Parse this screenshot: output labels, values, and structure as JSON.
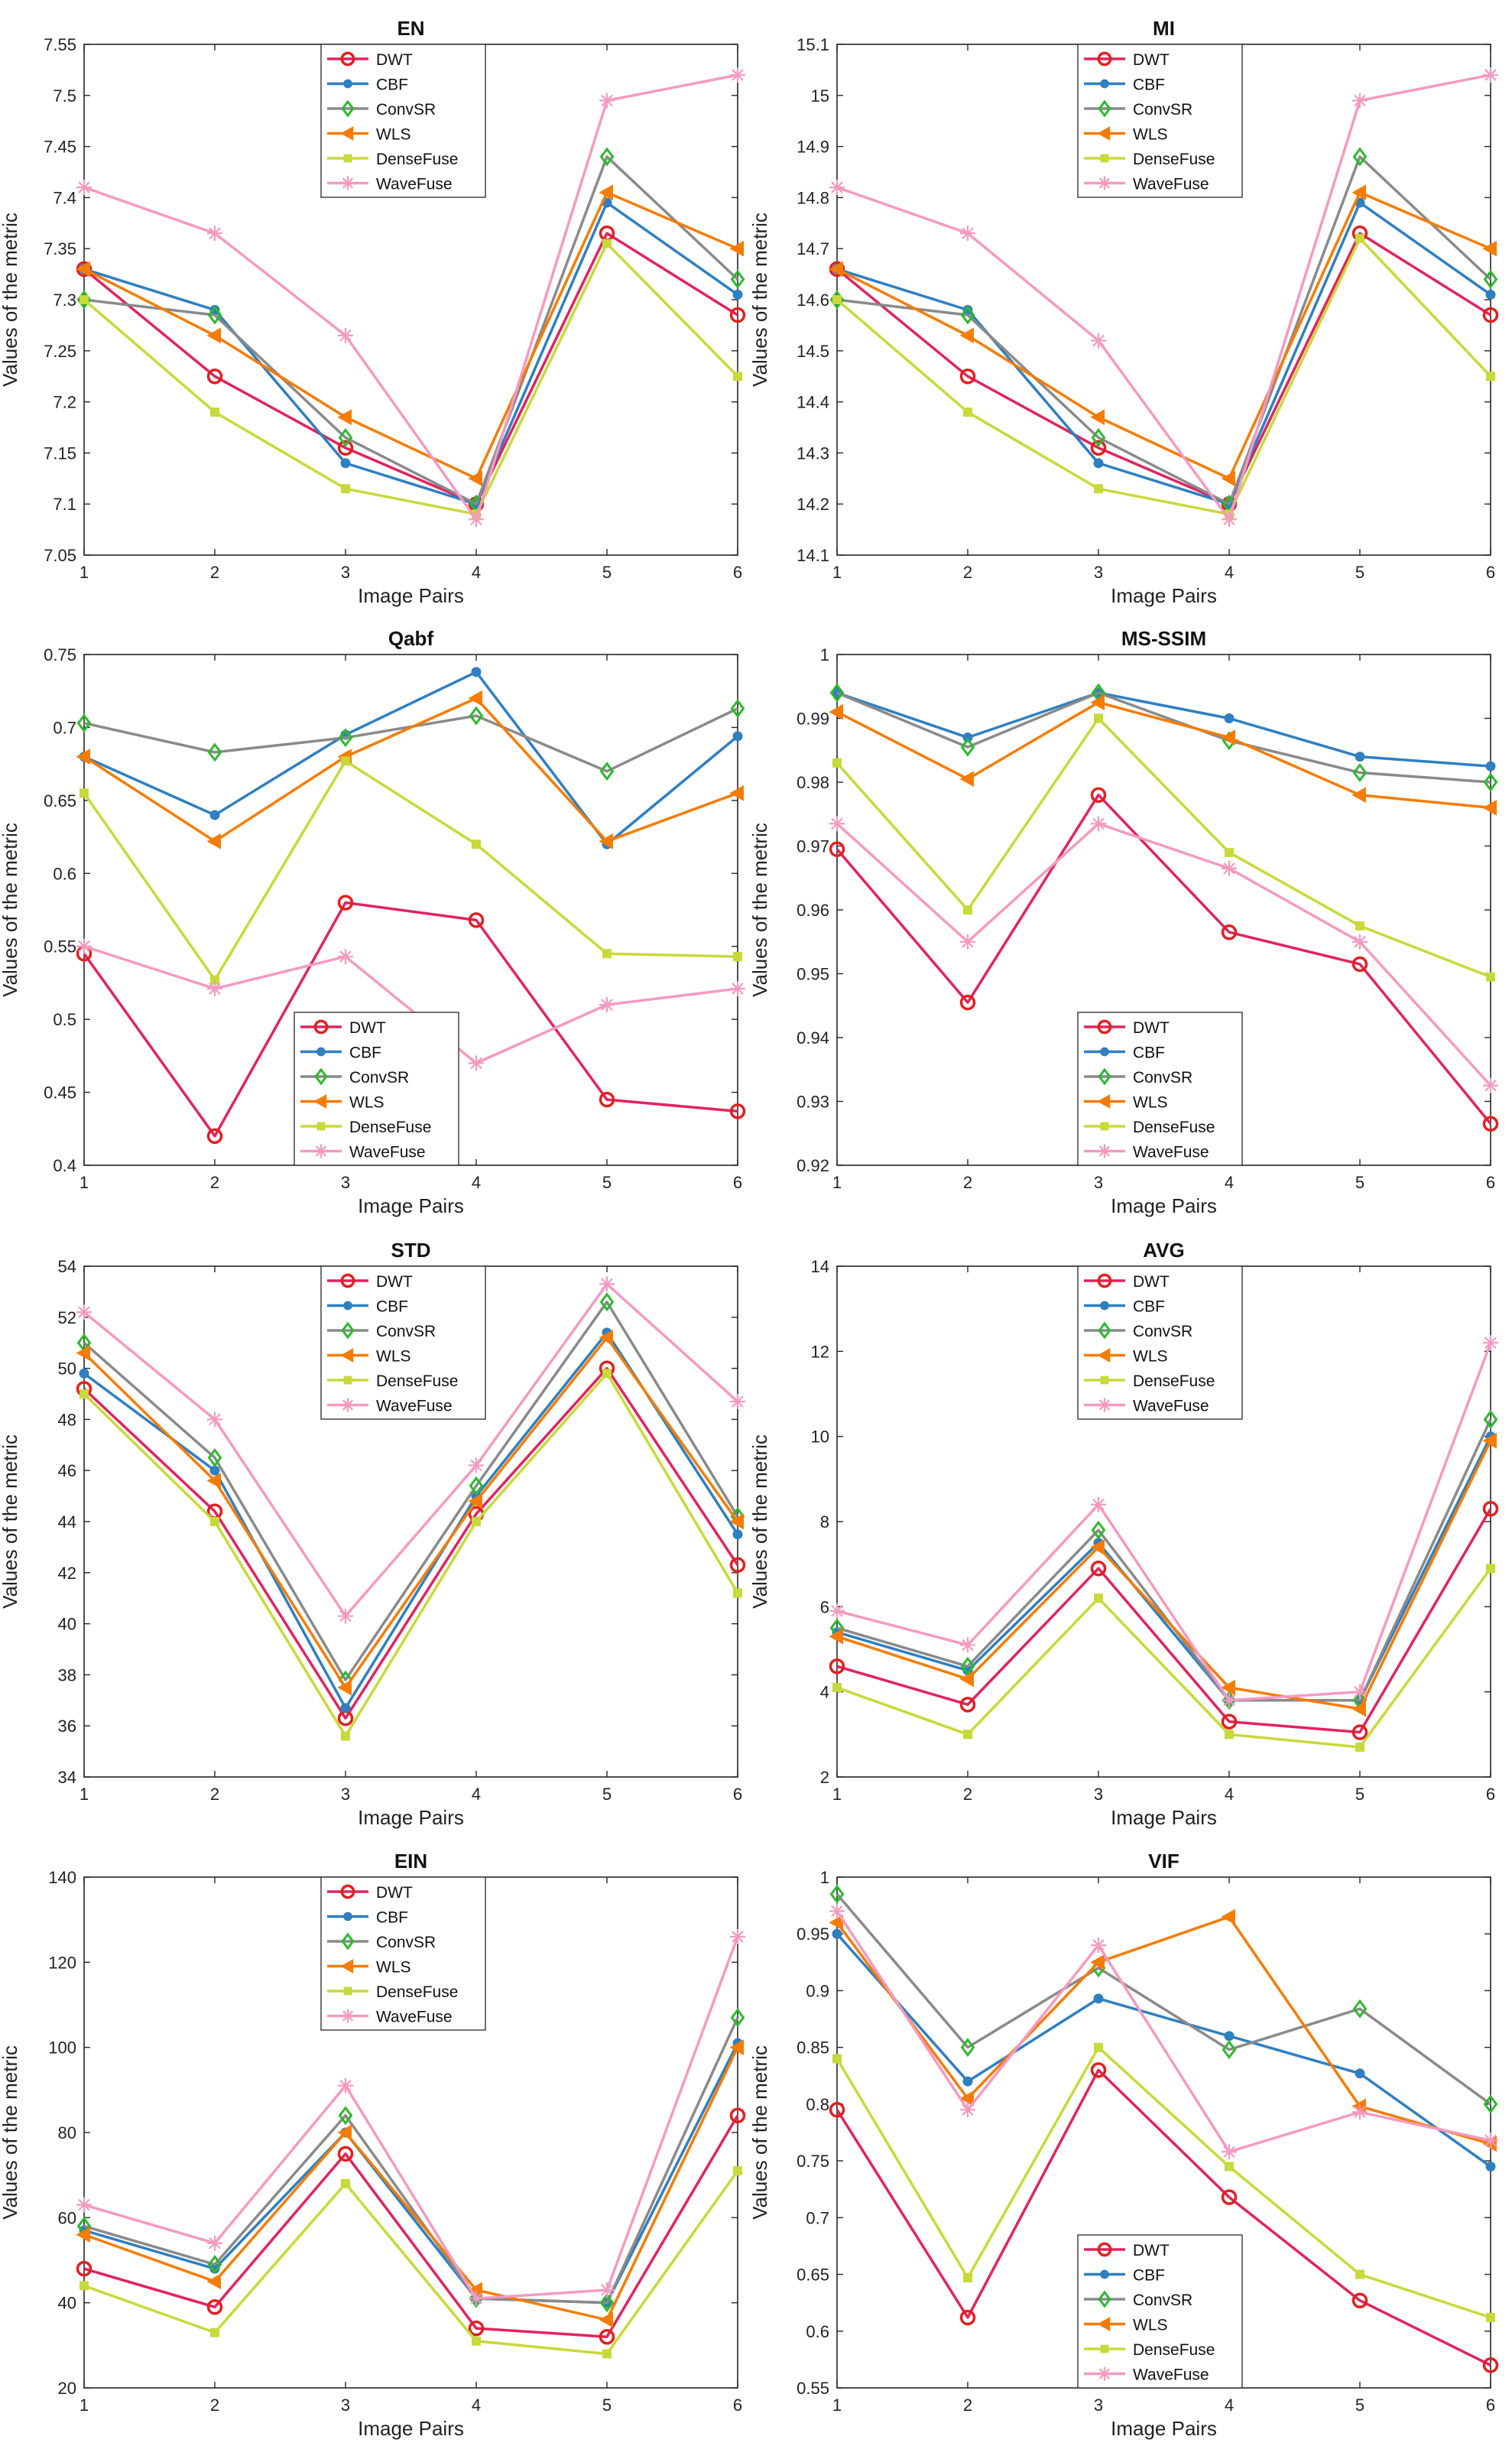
{
  "colors": {
    "DWT": "#e0245e",
    "CBF": "#2f7fc1",
    "ConvSR": "#8a8a8a",
    "WLS": "#f57c00",
    "DenseFuse": "#c8d93a",
    "WaveFuse": "#f49ac1",
    "axis": "#262626",
    "marker_ring_DWT": "#e02020",
    "marker_ConvSR": "#2eb82e"
  },
  "chart_data": [
    {
      "type": "line",
      "title": "EN",
      "xlabel": "Image Pairs",
      "ylabel": "Values of the metric",
      "x": [
        1,
        2,
        3,
        4,
        5,
        6
      ],
      "ylim": [
        7.05,
        7.55
      ],
      "yticks": [
        "7.05",
        "7.1",
        "7.15",
        "7.2",
        "7.25",
        "7.3",
        "7.35",
        "7.4",
        "7.45",
        "7.5",
        "7.55"
      ],
      "legend_position": "top-center",
      "grid": false,
      "series": [
        {
          "name": "DWT",
          "values": [
            7.33,
            7.225,
            7.155,
            7.1,
            7.365,
            7.285
          ]
        },
        {
          "name": "CBF",
          "values": [
            7.33,
            7.29,
            7.14,
            7.1,
            7.395,
            7.305
          ]
        },
        {
          "name": "ConvSR",
          "values": [
            7.3,
            7.285,
            7.165,
            7.1,
            7.44,
            7.32
          ]
        },
        {
          "name": "WLS",
          "values": [
            7.33,
            7.265,
            7.185,
            7.125,
            7.405,
            7.35
          ]
        },
        {
          "name": "DenseFuse",
          "values": [
            7.3,
            7.19,
            7.115,
            7.09,
            7.355,
            7.225
          ]
        },
        {
          "name": "WaveFuse",
          "values": [
            7.41,
            7.365,
            7.265,
            7.085,
            7.495,
            7.52
          ]
        }
      ]
    },
    {
      "type": "line",
      "title": "MI",
      "xlabel": "Image Pairs",
      "ylabel": "Values of the metric",
      "x": [
        1,
        2,
        3,
        4,
        5,
        6
      ],
      "ylim": [
        14.1,
        15.1
      ],
      "yticks": [
        "14.1",
        "14.2",
        "14.3",
        "14.4",
        "14.5",
        "14.6",
        "14.7",
        "14.8",
        "14.9",
        "15",
        "15.1"
      ],
      "legend_position": "top-center",
      "grid": false,
      "series": [
        {
          "name": "DWT",
          "values": [
            14.66,
            14.45,
            14.31,
            14.2,
            14.73,
            14.57
          ]
        },
        {
          "name": "CBF",
          "values": [
            14.66,
            14.58,
            14.28,
            14.2,
            14.79,
            14.61
          ]
        },
        {
          "name": "ConvSR",
          "values": [
            14.6,
            14.57,
            14.33,
            14.2,
            14.88,
            14.64
          ]
        },
        {
          "name": "WLS",
          "values": [
            14.66,
            14.53,
            14.37,
            14.25,
            14.81,
            14.7
          ]
        },
        {
          "name": "DenseFuse",
          "values": [
            14.6,
            14.38,
            14.23,
            14.18,
            14.72,
            14.45
          ]
        },
        {
          "name": "WaveFuse",
          "values": [
            14.82,
            14.73,
            14.52,
            14.17,
            14.99,
            15.04
          ]
        }
      ]
    },
    {
      "type": "line",
      "title": "Qabf",
      "xlabel": "Image Pairs",
      "ylabel": "Values of the metric",
      "x": [
        1,
        2,
        3,
        4,
        5,
        6
      ],
      "ylim": [
        0.4,
        0.75
      ],
      "yticks": [
        "0.4",
        "0.45",
        "0.5",
        "0.55",
        "0.6",
        "0.65",
        "0.7",
        "0.75"
      ],
      "legend_position": "bottom-center",
      "grid": false,
      "series": [
        {
          "name": "DWT",
          "values": [
            0.545,
            0.42,
            0.58,
            0.568,
            0.445,
            0.437
          ]
        },
        {
          "name": "CBF",
          "values": [
            0.68,
            0.64,
            0.695,
            0.738,
            0.62,
            0.694
          ]
        },
        {
          "name": "ConvSR",
          "values": [
            0.703,
            0.683,
            0.693,
            0.708,
            0.67,
            0.713
          ]
        },
        {
          "name": "WLS",
          "values": [
            0.68,
            0.622,
            0.68,
            0.72,
            0.622,
            0.655
          ]
        },
        {
          "name": "DenseFuse",
          "values": [
            0.655,
            0.527,
            0.677,
            0.62,
            0.545,
            0.543
          ]
        },
        {
          "name": "WaveFuse",
          "values": [
            0.55,
            0.521,
            0.543,
            0.47,
            0.51,
            0.521
          ]
        }
      ]
    },
    {
      "type": "line",
      "title": "MS-SSIM",
      "xlabel": "Image Pairs",
      "ylabel": "Values of the metric",
      "x": [
        1,
        2,
        3,
        4,
        5,
        6
      ],
      "ylim": [
        0.92,
        1.0
      ],
      "yticks": [
        "0.92",
        "0.93",
        "0.94",
        "0.95",
        "0.96",
        "0.97",
        "0.98",
        "0.99",
        "1"
      ],
      "legend_position": "bottom-center",
      "grid": false,
      "series": [
        {
          "name": "DWT",
          "values": [
            0.9695,
            0.9455,
            0.978,
            0.9565,
            0.9515,
            0.9265
          ]
        },
        {
          "name": "CBF",
          "values": [
            0.994,
            0.987,
            0.994,
            0.99,
            0.984,
            0.9825
          ]
        },
        {
          "name": "ConvSR",
          "values": [
            0.994,
            0.9855,
            0.994,
            0.9865,
            0.9815,
            0.98
          ]
        },
        {
          "name": "WLS",
          "values": [
            0.991,
            0.9805,
            0.9925,
            0.987,
            0.978,
            0.976
          ]
        },
        {
          "name": "DenseFuse",
          "values": [
            0.983,
            0.96,
            0.99,
            0.969,
            0.9575,
            0.9495
          ]
        },
        {
          "name": "WaveFuse",
          "values": [
            0.9735,
            0.955,
            0.9735,
            0.9665,
            0.955,
            0.9325
          ]
        }
      ]
    },
    {
      "type": "line",
      "title": "STD",
      "xlabel": "Image Pairs",
      "ylabel": "Values of the metric",
      "x": [
        1,
        2,
        3,
        4,
        5,
        6
      ],
      "ylim": [
        34,
        54
      ],
      "yticks": [
        "34",
        "36",
        "38",
        "40",
        "42",
        "44",
        "46",
        "48",
        "50",
        "52",
        "54"
      ],
      "legend_position": "top-center",
      "grid": false,
      "series": [
        {
          "name": "DWT",
          "values": [
            49.2,
            44.4,
            36.3,
            44.3,
            50.0,
            42.3
          ]
        },
        {
          "name": "CBF",
          "values": [
            49.8,
            46.0,
            36.7,
            45.0,
            51.4,
            43.5
          ]
        },
        {
          "name": "ConvSR",
          "values": [
            51.0,
            46.5,
            37.8,
            45.4,
            52.6,
            44.2
          ]
        },
        {
          "name": "WLS",
          "values": [
            50.6,
            45.6,
            37.5,
            44.8,
            51.2,
            44.0
          ]
        },
        {
          "name": "DenseFuse",
          "values": [
            49.0,
            44.0,
            35.6,
            44.0,
            49.8,
            41.2
          ]
        },
        {
          "name": "WaveFuse",
          "values": [
            52.2,
            48.0,
            40.3,
            46.2,
            53.3,
            48.7
          ]
        }
      ]
    },
    {
      "type": "line",
      "title": "AVG",
      "xlabel": "Image Pairs",
      "ylabel": "Values of the metric",
      "x": [
        1,
        2,
        3,
        4,
        5,
        6
      ],
      "ylim": [
        2,
        14
      ],
      "yticks": [
        "2",
        "4",
        "6",
        "8",
        "10",
        "12",
        "14"
      ],
      "legend_position": "top-center",
      "grid": false,
      "series": [
        {
          "name": "DWT",
          "values": [
            4.6,
            3.7,
            6.9,
            3.3,
            3.05,
            8.3
          ]
        },
        {
          "name": "CBF",
          "values": [
            5.4,
            4.5,
            7.5,
            3.8,
            3.8,
            10.0
          ]
        },
        {
          "name": "ConvSR",
          "values": [
            5.5,
            4.6,
            7.8,
            3.8,
            3.8,
            10.4
          ]
        },
        {
          "name": "WLS",
          "values": [
            5.3,
            4.3,
            7.4,
            4.1,
            3.6,
            9.9
          ]
        },
        {
          "name": "DenseFuse",
          "values": [
            4.1,
            3.0,
            6.2,
            3.0,
            2.7,
            6.9
          ]
        },
        {
          "name": "WaveFuse",
          "values": [
            5.9,
            5.1,
            8.4,
            3.8,
            4.0,
            12.2
          ]
        }
      ]
    },
    {
      "type": "line",
      "title": "EIN",
      "xlabel": "Image Pairs",
      "ylabel": "Values of the metric",
      "x": [
        1,
        2,
        3,
        4,
        5,
        6
      ],
      "ylim": [
        20,
        140
      ],
      "yticks": [
        "20",
        "40",
        "60",
        "80",
        "100",
        "120",
        "140"
      ],
      "legend_position": "top-center",
      "grid": false,
      "series": [
        {
          "name": "DWT",
          "values": [
            48,
            39,
            75,
            34,
            32,
            84
          ]
        },
        {
          "name": "CBF",
          "values": [
            57,
            48,
            80,
            41,
            40,
            101
          ]
        },
        {
          "name": "ConvSR",
          "values": [
            58,
            49,
            84,
            41,
            40,
            107
          ]
        },
        {
          "name": "WLS",
          "values": [
            56,
            45,
            80,
            43,
            36,
            100
          ]
        },
        {
          "name": "DenseFuse",
          "values": [
            44,
            33,
            68,
            31,
            28,
            71
          ]
        },
        {
          "name": "WaveFuse",
          "values": [
            63,
            54,
            91,
            41,
            43,
            126
          ]
        }
      ]
    },
    {
      "type": "line",
      "title": "VIF",
      "xlabel": "Image Pairs",
      "ylabel": "Values of the metric",
      "x": [
        1,
        2,
        3,
        4,
        5,
        6
      ],
      "ylim": [
        0.55,
        1.0
      ],
      "yticks": [
        "0.55",
        "0.6",
        "0.65",
        "0.7",
        "0.75",
        "0.8",
        "0.85",
        "0.9",
        "0.95",
        "1"
      ],
      "legend_position": "bottom-left",
      "grid": false,
      "series": [
        {
          "name": "DWT",
          "values": [
            0.795,
            0.612,
            0.83,
            0.718,
            0.627,
            0.57
          ]
        },
        {
          "name": "CBF",
          "values": [
            0.95,
            0.82,
            0.893,
            0.86,
            0.827,
            0.745
          ]
        },
        {
          "name": "ConvSR",
          "values": [
            0.985,
            0.85,
            0.92,
            0.848,
            0.884,
            0.8
          ]
        },
        {
          "name": "WLS",
          "values": [
            0.96,
            0.805,
            0.925,
            0.965,
            0.798,
            0.765
          ]
        },
        {
          "name": "DenseFuse",
          "values": [
            0.84,
            0.647,
            0.85,
            0.745,
            0.65,
            0.612
          ]
        },
        {
          "name": "WaveFuse",
          "values": [
            0.97,
            0.795,
            0.94,
            0.758,
            0.793,
            0.768
          ]
        }
      ]
    }
  ]
}
